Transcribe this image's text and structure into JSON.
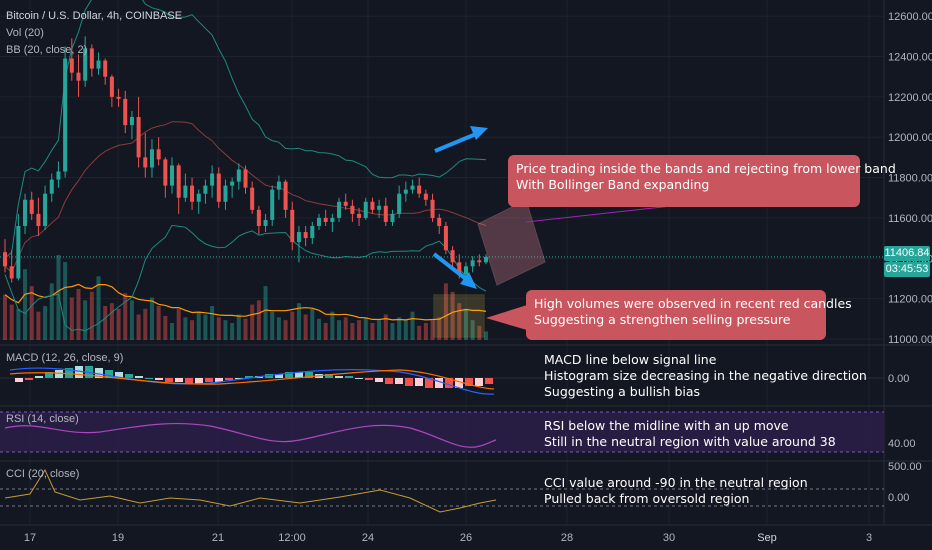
{
  "chart_data": [
    {
      "type": "candlestick",
      "title": "Bitcoin / U.S. Dollar, 4h, COINBASE",
      "indicators": [
        "Vol (20)",
        "BB (20, close, 2)"
      ],
      "price_axis": [
        "12600.00",
        "12400.00",
        "12200.00",
        "12000.00",
        "11800.00",
        "11600.00",
        "11400.00",
        "11200.00",
        "11000.00"
      ],
      "ylim": [
        10980,
        12680
      ],
      "last_price": "11406.84",
      "countdown": "03:45:53",
      "colors": {
        "up": "#26a69a",
        "down": "#ef5350",
        "bb": "#1f8a80",
        "basis": "#8a3c3c",
        "vol_ma": "#ff9800",
        "background": "#131722"
      },
      "candles": [
        [
          11430,
          11495,
          11330,
          11360
        ],
        [
          11360,
          11440,
          11280,
          11300
        ],
        [
          11300,
          11620,
          11290,
          11560
        ],
        [
          11560,
          11720,
          11520,
          11690
        ],
        [
          11690,
          11730,
          11590,
          11620
        ],
        [
          11620,
          11700,
          11510,
          11560
        ],
        [
          11560,
          11760,
          11540,
          11720
        ],
        [
          11720,
          11820,
          11680,
          11790
        ],
        [
          11790,
          11880,
          11750,
          11830
        ],
        [
          11830,
          12450,
          11800,
          12390
        ],
        [
          12390,
          12490,
          12280,
          12320
        ],
        [
          12320,
          12410,
          12200,
          12280
        ],
        [
          12280,
          12500,
          12250,
          12440
        ],
        [
          12440,
          12460,
          12300,
          12340
        ],
        [
          12340,
          12420,
          12310,
          12380
        ],
        [
          12380,
          12390,
          12260,
          12300
        ],
        [
          12300,
          12310,
          12150,
          12200
        ],
        [
          12200,
          12240,
          12150,
          12190
        ],
        [
          12190,
          12230,
          12020,
          12060
        ],
        [
          12060,
          12130,
          11990,
          12100
        ],
        [
          12100,
          12200,
          11850,
          11900
        ],
        [
          11900,
          12020,
          11800,
          11850
        ],
        [
          11850,
          11990,
          11800,
          11940
        ],
        [
          11940,
          12000,
          11860,
          11890
        ],
        [
          11890,
          11900,
          11700,
          11760
        ],
        [
          11760,
          11900,
          11720,
          11860
        ],
        [
          11860,
          11870,
          11620,
          11700
        ],
        [
          11700,
          11820,
          11680,
          11760
        ],
        [
          11760,
          11800,
          11640,
          11680
        ],
        [
          11680,
          11740,
          11620,
          11720
        ],
        [
          11720,
          11790,
          11670,
          11760
        ],
        [
          11760,
          11860,
          11700,
          11820
        ],
        [
          11820,
          11850,
          11650,
          11680
        ],
        [
          11680,
          11790,
          11640,
          11760
        ],
        [
          11760,
          11800,
          11700,
          11780
        ],
        [
          11780,
          11870,
          11740,
          11840
        ],
        [
          11840,
          11860,
          11720,
          11750
        ],
        [
          11750,
          11780,
          11620,
          11640
        ],
        [
          11640,
          11660,
          11520,
          11560
        ],
        [
          11560,
          11620,
          11530,
          11590
        ],
        [
          11590,
          11760,
          11560,
          11740
        ],
        [
          11740,
          11810,
          11690,
          11780
        ],
        [
          11780,
          11790,
          11600,
          11640
        ],
        [
          11640,
          11680,
          11440,
          11480
        ],
        [
          11480,
          11560,
          11380,
          11530
        ],
        [
          11530,
          11560,
          11460,
          11500
        ],
        [
          11500,
          11580,
          11470,
          11560
        ],
        [
          11560,
          11620,
          11540,
          11600
        ],
        [
          11600,
          11640,
          11560,
          11580
        ],
        [
          11580,
          11620,
          11530,
          11600
        ],
        [
          11600,
          11700,
          11580,
          11680
        ],
        [
          11680,
          11720,
          11640,
          11660
        ],
        [
          11660,
          11690,
          11580,
          11620
        ],
        [
          11620,
          11650,
          11560,
          11600
        ],
        [
          11600,
          11700,
          11590,
          11680
        ],
        [
          11680,
          11700,
          11620,
          11640
        ],
        [
          11640,
          11690,
          11600,
          11660
        ],
        [
          11660,
          11700,
          11560,
          11580
        ],
        [
          11580,
          11640,
          11560,
          11620
        ],
        [
          11620,
          11760,
          11600,
          11720
        ],
        [
          11720,
          11780,
          11680,
          11740
        ],
        [
          11740,
          11790,
          11720,
          11760
        ],
        [
          11760,
          11800,
          11700,
          11720
        ],
        [
          11720,
          11740,
          11660,
          11690
        ],
        [
          11690,
          11720,
          11580,
          11600
        ],
        [
          11600,
          11620,
          11520,
          11560
        ],
        [
          11560,
          11580,
          11420,
          11440
        ],
        [
          11440,
          11460,
          11360,
          11380
        ],
        [
          11380,
          11420,
          11300,
          11320
        ],
        [
          11320,
          11380,
          11290,
          11360
        ],
        [
          11360,
          11410,
          11330,
          11390
        ],
        [
          11390,
          11420,
          11360,
          11380
        ],
        [
          11380,
          11420,
          11370,
          11407
        ]
      ],
      "volume": [
        32,
        25,
        22,
        50,
        38,
        20,
        24,
        40,
        60,
        55,
        30,
        36,
        28,
        34,
        45,
        24,
        26,
        22,
        33,
        28,
        18,
        22,
        30,
        24,
        17,
        12,
        22,
        16,
        14,
        20,
        18,
        24,
        16,
        14,
        12,
        18,
        15,
        25,
        28,
        38,
        20,
        16,
        14,
        20,
        26,
        18,
        22,
        15,
        12,
        20,
        14,
        16,
        12,
        14,
        16,
        12,
        14,
        18,
        12,
        16,
        14,
        20,
        10,
        12,
        14,
        16,
        40,
        34,
        26,
        22,
        14,
        10,
        6
      ],
      "time_axis": [
        "17",
        "19",
        "21",
        "12:00",
        "24",
        "26",
        "28",
        "30",
        "Sep",
        "3"
      ]
    },
    {
      "type": "line",
      "name": "MACD (12, 26, close, 9)",
      "axis": [
        "0.00"
      ]
    },
    {
      "type": "line",
      "name": "RSI (14, close)",
      "axis": [
        "40.00"
      ]
    },
    {
      "type": "line",
      "name": "CCI (20, close)",
      "axis": [
        "500.00",
        "0.00"
      ]
    }
  ],
  "annotations": {
    "callout_bands": [
      "Price trading inside the bands and rejecting from lower band",
      "With Bollinger Band expanding"
    ],
    "callout_volume": [
      "High volumes were observed in recent red candles",
      "Suggesting a strengthen selling pressure"
    ],
    "macd_note": [
      "MACD line below signal line",
      "Histogram size decreasing in the negative direction",
      "Suggesting a bullish bias"
    ],
    "rsi_note": [
      "RSI below the midline with an up move",
      "Still in the neutral region with value around 38"
    ],
    "cci_note": [
      "CCI value around -90 in the neutral region",
      "Pulled back from oversold region"
    ]
  }
}
